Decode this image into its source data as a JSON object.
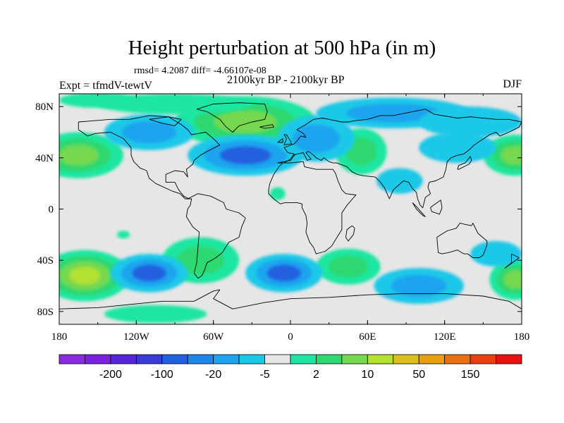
{
  "title": "Height perturbation at 500 hPa (in m)",
  "stats": "rmsd= 4.2087 diff= -4.66107e-08",
  "period": "2100kyr BP - 2100kyr BP",
  "experiment": "Expt = tfmdV-tewtV",
  "season": "DJF",
  "map": {
    "lon_range": [
      -180,
      180
    ],
    "lat_range": [
      -90,
      90
    ],
    "background_color": "#e6e6e6",
    "x_ticks": [
      {
        "lon": -180,
        "label": "180"
      },
      {
        "lon": -120,
        "label": "120W"
      },
      {
        "lon": -60,
        "label": "60W"
      },
      {
        "lon": 0,
        "label": "0"
      },
      {
        "lon": 60,
        "label": "60E"
      },
      {
        "lon": 120,
        "label": "120E"
      },
      {
        "lon": 180,
        "label": "180"
      }
    ],
    "y_ticks": [
      {
        "lat": 80,
        "label": "80N"
      },
      {
        "lat": 40,
        "label": "40N"
      },
      {
        "lat": 0,
        "label": "0"
      },
      {
        "lat": -40,
        "label": "40S"
      },
      {
        "lat": -80,
        "label": "80S"
      }
    ],
    "anomalies": [
      {
        "lon": -35,
        "lat": 68,
        "rlon": 55,
        "rlat": 20,
        "level": 3
      },
      {
        "lon": -165,
        "lat": 42,
        "rlon": 35,
        "rlat": 18,
        "level": 3
      },
      {
        "lon": 175,
        "lat": 42,
        "rlon": 25,
        "rlat": 16,
        "level": 3
      },
      {
        "lon": 55,
        "lat": 45,
        "rlon": 20,
        "rlat": 18,
        "level": 2
      },
      {
        "lon": -90,
        "lat": 82,
        "rlon": 60,
        "rlat": 8,
        "level": 1
      },
      {
        "lon": -150,
        "lat": 85,
        "rlon": 30,
        "rlat": 6,
        "level": 1
      },
      {
        "lon": -35,
        "lat": 42,
        "rlon": 45,
        "rlat": 16,
        "level": -3
      },
      {
        "lon": -110,
        "lat": 60,
        "rlon": 35,
        "rlat": 14,
        "level": -2
      },
      {
        "lon": 20,
        "lat": 55,
        "rlon": 30,
        "rlat": 18,
        "level": -2
      },
      {
        "lon": 80,
        "lat": 75,
        "rlon": 60,
        "rlat": 12,
        "level": -2
      },
      {
        "lon": 140,
        "lat": 68,
        "rlon": 40,
        "rlat": 12,
        "level": -1
      },
      {
        "lon": 130,
        "lat": 48,
        "rlon": 30,
        "rlat": 12,
        "level": -1
      },
      {
        "lon": 85,
        "lat": 22,
        "rlon": 18,
        "rlat": 10,
        "level": -1
      },
      {
        "lon": -160,
        "lat": -52,
        "rlon": 35,
        "rlat": 20,
        "level": 4
      },
      {
        "lon": 175,
        "lat": -55,
        "rlon": 20,
        "rlat": 16,
        "level": 3
      },
      {
        "lon": -70,
        "lat": -40,
        "rlon": 30,
        "rlat": 18,
        "level": 2
      },
      {
        "lon": 45,
        "lat": -45,
        "rlon": 25,
        "rlat": 14,
        "level": 2
      },
      {
        "lon": -105,
        "lat": -82,
        "rlon": 40,
        "rlat": 7,
        "level": 1
      },
      {
        "lon": -110,
        "lat": -50,
        "rlon": 30,
        "rlat": 15,
        "level": -3
      },
      {
        "lon": -5,
        "lat": -50,
        "rlon": 30,
        "rlat": 15,
        "level": -3
      },
      {
        "lon": 100,
        "lat": -60,
        "rlon": 35,
        "rlat": 14,
        "level": -2
      },
      {
        "lon": 160,
        "lat": -35,
        "rlon": 20,
        "rlat": 10,
        "level": -1
      },
      {
        "lon": -10,
        "lat": 12,
        "rlon": 6,
        "rlat": 5,
        "level": 1
      },
      {
        "lon": -130,
        "lat": -20,
        "rlon": 5,
        "rlat": 3,
        "level": 1
      }
    ],
    "land_outlines": [
      [
        [
          -165,
          68
        ],
        [
          -140,
          70
        ],
        [
          -125,
          70
        ],
        [
          -110,
          73
        ],
        [
          -95,
          72
        ],
        [
          -85,
          66
        ],
        [
          -80,
          62
        ],
        [
          -77,
          58
        ],
        [
          -66,
          60
        ],
        [
          -60,
          55
        ],
        [
          -55,
          50
        ],
        [
          -65,
          45
        ],
        [
          -70,
          42
        ],
        [
          -75,
          38
        ],
        [
          -76,
          35
        ],
        [
          -81,
          31
        ],
        [
          -80,
          25
        ],
        [
          -83,
          29
        ],
        [
          -90,
          30
        ],
        [
          -97,
          27
        ],
        [
          -97,
          21
        ],
        [
          -90,
          21
        ],
        [
          -87,
          15
        ],
        [
          -83,
          10
        ],
        [
          -79,
          8
        ],
        [
          -82,
          8
        ],
        [
          -86,
          12
        ],
        [
          -92,
          14
        ],
        [
          -105,
          20
        ],
        [
          -110,
          24
        ],
        [
          -112,
          30
        ],
        [
          -117,
          32
        ],
        [
          -122,
          37
        ],
        [
          -124,
          42
        ],
        [
          -124,
          48
        ],
        [
          -130,
          55
        ],
        [
          -140,
          60
        ],
        [
          -152,
          59
        ],
        [
          -158,
          57
        ],
        [
          -165,
          62
        ],
        [
          -165,
          68
        ]
      ],
      [
        [
          -80,
          8
        ],
        [
          -72,
          12
        ],
        [
          -62,
          10
        ],
        [
          -52,
          5
        ],
        [
          -50,
          0
        ],
        [
          -40,
          -3
        ],
        [
          -35,
          -7
        ],
        [
          -38,
          -14
        ],
        [
          -40,
          -22
        ],
        [
          -48,
          -26
        ],
        [
          -53,
          -34
        ],
        [
          -58,
          -38
        ],
        [
          -65,
          -42
        ],
        [
          -67,
          -48
        ],
        [
          -69,
          -52
        ],
        [
          -72,
          -54
        ],
        [
          -75,
          -50
        ],
        [
          -73,
          -42
        ],
        [
          -72,
          -30
        ],
        [
          -71,
          -18
        ],
        [
          -76,
          -14
        ],
        [
          -81,
          -6
        ],
        [
          -80,
          0
        ],
        [
          -78,
          3
        ],
        [
          -77,
          8
        ],
        [
          -80,
          8
        ]
      ],
      [
        [
          -73,
          78
        ],
        [
          -60,
          82
        ],
        [
          -40,
          83
        ],
        [
          -20,
          82
        ],
        [
          -18,
          76
        ],
        [
          -20,
          70
        ],
        [
          -30,
          68
        ],
        [
          -40,
          65
        ],
        [
          -45,
          60
        ],
        [
          -50,
          64
        ],
        [
          -55,
          70
        ],
        [
          -65,
          76
        ],
        [
          -73,
          78
        ]
      ],
      [
        [
          -10,
          36
        ],
        [
          -5,
          36
        ],
        [
          0,
          39
        ],
        [
          3,
          43
        ],
        [
          -2,
          44
        ],
        [
          -5,
          48
        ],
        [
          -2,
          49
        ],
        [
          3,
          51
        ],
        [
          5,
          53
        ],
        [
          8,
          57
        ],
        [
          12,
          56
        ],
        [
          10,
          59
        ],
        [
          5,
          62
        ],
        [
          12,
          66
        ],
        [
          18,
          70
        ],
        [
          25,
          71
        ],
        [
          30,
          70
        ],
        [
          40,
          68
        ],
        [
          45,
          68
        ],
        [
          50,
          69
        ],
        [
          60,
          70
        ],
        [
          70,
          73
        ],
        [
          80,
          73
        ],
        [
          95,
          76
        ],
        [
          105,
          78
        ],
        [
          112,
          74
        ],
        [
          130,
          71
        ],
        [
          140,
          72
        ],
        [
          160,
          70
        ],
        [
          170,
          70
        ],
        [
          180,
          68
        ],
        [
          178,
          64
        ],
        [
          170,
          60
        ],
        [
          163,
          57
        ],
        [
          160,
          60
        ],
        [
          155,
          58
        ],
        [
          143,
          50
        ],
        [
          140,
          47
        ],
        [
          135,
          43
        ],
        [
          130,
          42
        ],
        [
          125,
          40
        ],
        [
          122,
          37
        ],
        [
          121,
          31
        ],
        [
          119,
          25
        ],
        [
          113,
          22
        ],
        [
          108,
          21
        ],
        [
          107,
          17
        ],
        [
          109,
          12
        ],
        [
          105,
          9
        ],
        [
          103,
          1
        ],
        [
          101,
          3
        ],
        [
          99,
          8
        ],
        [
          98,
          13
        ],
        [
          95,
          16
        ],
        [
          92,
          21
        ],
        [
          88,
          22
        ],
        [
          80,
          15
        ],
        [
          77,
          8
        ],
        [
          73,
          17
        ],
        [
          70,
          21
        ],
        [
          66,
          25
        ],
        [
          57,
          26
        ],
        [
          52,
          27
        ],
        [
          48,
          29
        ],
        [
          44,
          33
        ],
        [
          36,
          36
        ],
        [
          33,
          36
        ],
        [
          30,
          37
        ],
        [
          26,
          40
        ],
        [
          24,
          38
        ],
        [
          20,
          40
        ],
        [
          18,
          42
        ],
        [
          14,
          45
        ],
        [
          12,
          44
        ],
        [
          16,
          39
        ],
        [
          13,
          38
        ],
        [
          10,
          44
        ],
        [
          5,
          43
        ],
        [
          3,
          42
        ],
        [
          0,
          38
        ],
        [
          -10,
          36
        ]
      ],
      [
        [
          -17,
          15
        ],
        [
          -16,
          20
        ],
        [
          -13,
          27
        ],
        [
          -9,
          33
        ],
        [
          -6,
          36
        ],
        [
          0,
          36
        ],
        [
          10,
          37
        ],
        [
          11,
          33
        ],
        [
          20,
          31
        ],
        [
          30,
          31
        ],
        [
          33,
          31
        ],
        [
          35,
          28
        ],
        [
          37,
          22
        ],
        [
          40,
          15
        ],
        [
          43,
          12
        ],
        [
          51,
          11
        ],
        [
          44,
          3
        ],
        [
          40,
          -3
        ],
        [
          40,
          -10
        ],
        [
          40,
          -16
        ],
        [
          35,
          -24
        ],
        [
          32,
          -29
        ],
        [
          27,
          -33
        ],
        [
          20,
          -35
        ],
        [
          18,
          -30
        ],
        [
          15,
          -26
        ],
        [
          12,
          -18
        ],
        [
          13,
          -11
        ],
        [
          12,
          -5
        ],
        [
          9,
          1
        ],
        [
          9,
          4
        ],
        [
          5,
          5
        ],
        [
          -4,
          5
        ],
        [
          -8,
          4
        ],
        [
          -13,
          8
        ],
        [
          -17,
          12
        ],
        [
          -17,
          15
        ]
      ],
      [
        [
          114,
          -22
        ],
        [
          115,
          -34
        ],
        [
          118,
          -35
        ],
        [
          123,
          -34
        ],
        [
          130,
          -32
        ],
        [
          135,
          -35
        ],
        [
          138,
          -35
        ],
        [
          142,
          -38
        ],
        [
          147,
          -38
        ],
        [
          150,
          -36
        ],
        [
          153,
          -28
        ],
        [
          153,
          -25
        ],
        [
          146,
          -19
        ],
        [
          142,
          -11
        ],
        [
          141,
          -13
        ],
        [
          136,
          -12
        ],
        [
          132,
          -11
        ],
        [
          129,
          -15
        ],
        [
          122,
          -17
        ],
        [
          114,
          -22
        ]
      ],
      [
        [
          -180,
          -78
        ],
        [
          -150,
          -77
        ],
        [
          -120,
          -74
        ],
        [
          -100,
          -72
        ],
        [
          -75,
          -72
        ],
        [
          -60,
          -64
        ],
        [
          -55,
          -63
        ],
        [
          -60,
          -70
        ],
        [
          -45,
          -78
        ],
        [
          -20,
          -73
        ],
        [
          0,
          -70
        ],
        [
          30,
          -69
        ],
        [
          60,
          -67
        ],
        [
          90,
          -66
        ],
        [
          120,
          -66
        ],
        [
          150,
          -68
        ],
        [
          170,
          -72
        ],
        [
          180,
          -78
        ]
      ],
      [
        [
          -5,
          50
        ],
        [
          -3,
          55
        ],
        [
          -5,
          58
        ],
        [
          -3,
          58
        ],
        [
          0,
          53
        ],
        [
          1,
          51
        ],
        [
          -5,
          50
        ]
      ],
      [
        [
          -10,
          52
        ],
        [
          -6,
          55
        ],
        [
          -6,
          52
        ],
        [
          -10,
          52
        ]
      ],
      [
        [
          48,
          -13
        ],
        [
          44,
          -16
        ],
        [
          43,
          -22
        ],
        [
          45,
          -25
        ],
        [
          49,
          -20
        ],
        [
          50,
          -15
        ],
        [
          48,
          -13
        ]
      ],
      [
        [
          130,
          31
        ],
        [
          131,
          34
        ],
        [
          136,
          36
        ],
        [
          140,
          41
        ],
        [
          141,
          38
        ],
        [
          139,
          35
        ],
        [
          131,
          31
        ],
        [
          130,
          31
        ]
      ],
      [
        [
          95,
          5
        ],
        [
          98,
          2
        ],
        [
          105,
          -6
        ],
        [
          103,
          -5
        ],
        [
          98,
          0
        ],
        [
          95,
          5
        ]
      ],
      [
        [
          109,
          1
        ],
        [
          110,
          -2
        ],
        [
          116,
          -4
        ],
        [
          118,
          1
        ],
        [
          117,
          7
        ],
        [
          110,
          2
        ],
        [
          109,
          1
        ]
      ],
      [
        [
          -24,
          64
        ],
        [
          -14,
          66
        ],
        [
          -13,
          64
        ],
        [
          -20,
          63
        ],
        [
          -24,
          64
        ]
      ],
      [
        [
          172,
          -35
        ],
        [
          178,
          -38
        ],
        [
          174,
          -41
        ],
        [
          167,
          -46
        ],
        [
          172,
          -42
        ],
        [
          172,
          -35
        ]
      ],
      [
        [
          -110,
          70
        ],
        [
          -95,
          72
        ],
        [
          -85,
          70
        ],
        [
          -90,
          65
        ],
        [
          -100,
          67
        ],
        [
          -110,
          70
        ]
      ]
    ]
  },
  "colorbar": {
    "colors": [
      "#8a2be2",
      "#7a22e0",
      "#5a24d8",
      "#3a3ad8",
      "#2060e0",
      "#1d86e8",
      "#1ca4ee",
      "#1cc8e8",
      "#e6e6e6",
      "#1ce6a0",
      "#2ed870",
      "#74d850",
      "#b4e030",
      "#dcc020",
      "#e8a010",
      "#e87010",
      "#e84010",
      "#e81010"
    ],
    "labels": [
      {
        "after_box": 2,
        "text": "-200"
      },
      {
        "after_box": 4,
        "text": "-100"
      },
      {
        "after_box": 6,
        "text": "-20"
      },
      {
        "after_box": 8,
        "text": "-5"
      },
      {
        "after_box": 10,
        "text": "2"
      },
      {
        "after_box": 12,
        "text": "10"
      },
      {
        "after_box": 14,
        "text": "50"
      },
      {
        "after_box": 16,
        "text": "150"
      }
    ]
  },
  "level_colors": {
    "-3": "#2060e0",
    "-2": "#1ca4ee",
    "-1": "#1cc8e8",
    "1": "#1ce6a0",
    "2": "#2ed870",
    "3": "#74d850",
    "4": "#b4e030",
    "5": "#dcc020"
  }
}
